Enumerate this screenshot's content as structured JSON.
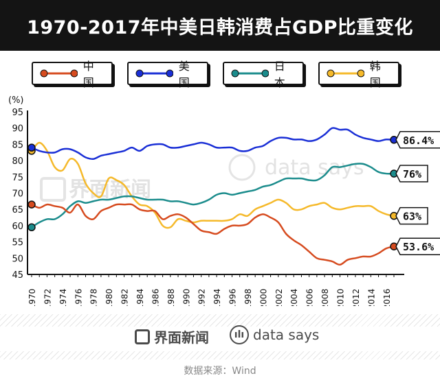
{
  "title": "1970-2017年中美日韩消费占GDP比重变化",
  "legend": [
    {
      "label": "中国",
      "color": "#d64b1f"
    },
    {
      "label": "美国",
      "color": "#1a2fd6"
    },
    {
      "label": "日本",
      "color": "#1b8c8c"
    },
    {
      "label": "韩国",
      "color": "#f5b92a"
    }
  ],
  "chart_data": {
    "type": "line",
    "title": "1970-2017年中美日韩消费占GDP比重变化",
    "ylabel": "(%)",
    "xlabel": "",
    "ylim": [
      45,
      95
    ],
    "yticks": [
      45,
      50,
      55,
      60,
      65,
      70,
      75,
      80,
      85,
      90,
      95
    ],
    "xticks": [
      "1970",
      "1972",
      "1974",
      "1976",
      "1978",
      "1980",
      "1982",
      "1984",
      "1986",
      "1988",
      "1990",
      "1992",
      "1994",
      "1996",
      "1998",
      "2000",
      "2002",
      "2004",
      "2006",
      "2008",
      "2010",
      "2012",
      "2014",
      "2016"
    ],
    "x": [
      1970,
      1971,
      1972,
      1973,
      1974,
      1975,
      1976,
      1977,
      1978,
      1979,
      1980,
      1981,
      1982,
      1983,
      1984,
      1985,
      1986,
      1987,
      1988,
      1989,
      1990,
      1991,
      1992,
      1993,
      1994,
      1995,
      1996,
      1997,
      1998,
      1999,
      2000,
      2001,
      2002,
      2003,
      2004,
      2005,
      2006,
      2007,
      2008,
      2009,
      2010,
      2011,
      2012,
      2013,
      2014,
      2015,
      2016,
      2017
    ],
    "series": [
      {
        "name": "中国",
        "color": "#d64b1f",
        "end_label": "53.6%",
        "values": [
          66.5,
          65.5,
          66.5,
          66,
          65.5,
          64,
          66.5,
          63,
          62,
          64.5,
          65.5,
          66.5,
          66.5,
          66.5,
          65,
          64.5,
          64.5,
          62,
          63,
          63.5,
          62.5,
          60.5,
          58.5,
          58,
          57.5,
          59,
          60,
          60,
          60.5,
          62.5,
          63.5,
          62.5,
          61,
          57.5,
          55.5,
          54,
          52,
          50,
          49.5,
          49,
          48,
          49.5,
          50,
          50.5,
          50.5,
          51.5,
          53,
          53.6
        ]
      },
      {
        "name": "美国",
        "color": "#1a2fd6",
        "end_label": "86.4%",
        "values": [
          84,
          83,
          82.5,
          82.5,
          83.5,
          83.5,
          82.5,
          81,
          80.5,
          81.5,
          82,
          82.5,
          83,
          84,
          83,
          84.5,
          85,
          85,
          84,
          84,
          84.5,
          85,
          85.5,
          85,
          84,
          84,
          84,
          83,
          83,
          84,
          84.5,
          86,
          87,
          87,
          86.5,
          86.5,
          86,
          86.5,
          88,
          90,
          89.5,
          89.5,
          88,
          87,
          86.5,
          86,
          86.5,
          86.4
        ]
      },
      {
        "name": "日本",
        "color": "#1b8c8c",
        "end_label": "76%",
        "values": [
          59.5,
          61,
          62,
          62,
          63.5,
          66,
          67.5,
          67,
          67.5,
          68,
          68,
          68.5,
          69,
          69,
          68.5,
          68,
          68,
          68,
          67.5,
          67.5,
          67,
          66.5,
          67,
          68,
          69.5,
          70,
          69.5,
          70,
          70.5,
          71,
          72,
          72.5,
          73.5,
          74.5,
          74.5,
          74.5,
          74,
          74,
          75.5,
          78,
          78,
          78.5,
          79,
          79,
          78,
          76.5,
          76,
          76
        ]
      },
      {
        "name": "韩国",
        "color": "#f5b92a",
        "end_label": "63%",
        "values": [
          83,
          85.5,
          83,
          78,
          77,
          80.5,
          79,
          73,
          70,
          69,
          74.5,
          74,
          72.5,
          69,
          66.5,
          66,
          64,
          60,
          59.5,
          62,
          61.5,
          61,
          61.5,
          61.5,
          61.5,
          61.5,
          62,
          63.5,
          63,
          65,
          66,
          67,
          68,
          67,
          65,
          65,
          66,
          66.5,
          67,
          65.5,
          65,
          65.5,
          66,
          66,
          66,
          64.5,
          63.5,
          63
        ]
      }
    ]
  },
  "watermark": {
    "brand1": "界面新闻",
    "brand2": "data says"
  },
  "footer": {
    "brand1": "界面新闻",
    "brand2": "data says",
    "source": "数据来源：Wind"
  }
}
